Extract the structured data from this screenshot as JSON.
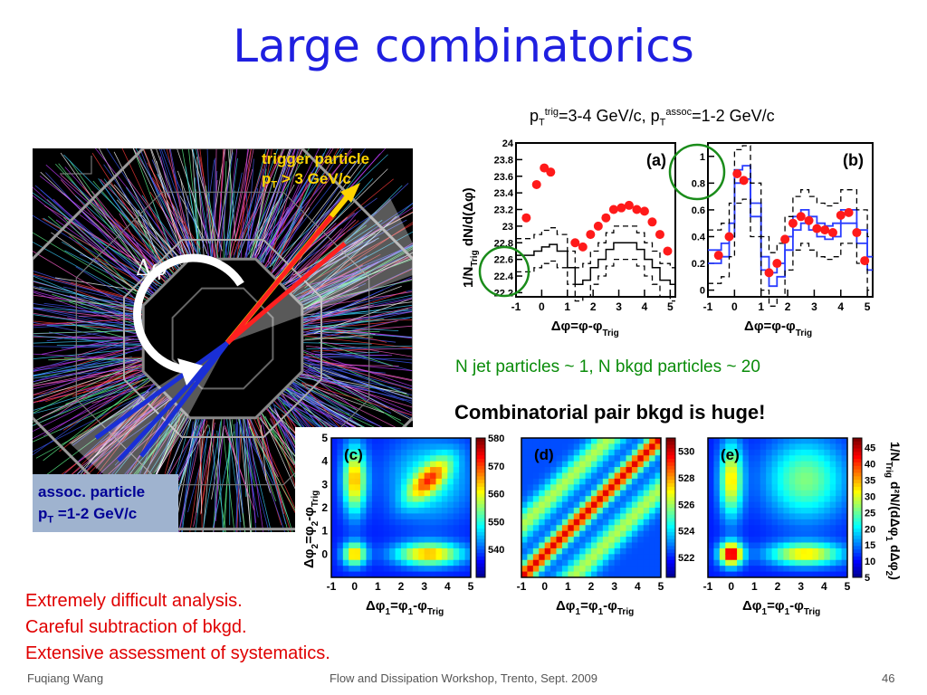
{
  "slide": {
    "title": "Large combinatorics",
    "footer": {
      "author": "Fuqiang Wang",
      "event": "Flow and Dissipation Workshop, Trento, Sept. 2009",
      "page": "46"
    }
  },
  "kinematics": {
    "pt": "p",
    "T": "T",
    "trig_sup": "trig",
    "trig_range": "=3-4 GeV/c, p",
    "assoc_sup": "assoc",
    "assoc_range": "=1-2 GeV/c"
  },
  "event_display": {
    "trigger_line1": "trigger particle",
    "trigger_line2_a": "p",
    "trigger_line2_sub": "T",
    "trigger_line2_b": " > 3 GeV/c",
    "assoc_line1": "assoc. particle",
    "assoc_line2_a": "p",
    "assoc_line2_sub": "T",
    "assoc_line2_b": " =1-2 GeV/c",
    "dphi_label": "Δφ",
    "colors": {
      "trigger": "#ffd400",
      "assoc": "#1a2fd6",
      "turn_arrow": "#ffffff"
    }
  },
  "annotations": {
    "njet": "N jet particles ~ 1,    N bkgd particles ~ 20",
    "combinatorial": "Combinatorial pair bkgd is huge!",
    "notes": [
      "Extremely difficult analysis.",
      "Careful subtraction of bkgd.",
      "Extensive assessment of systematics."
    ]
  },
  "chart_data": [
    {
      "type": "scatter",
      "panel": "(a)",
      "ylabel": "1/N_Trig dN/d(Δφ)",
      "xlabel": "Δφ=φ-φ_Trig",
      "xlim": [
        -1,
        5.2
      ],
      "ylim": [
        22.15,
        24.0
      ],
      "xticks": [
        "-1",
        "0",
        "1",
        "2",
        "3",
        "4",
        "5"
      ],
      "yticks": [
        "22.2",
        "22.4",
        "22.6",
        "22.8",
        "23",
        "23.2",
        "23.4",
        "23.6",
        "23.8",
        "24"
      ],
      "series": [
        {
          "values_x": [
            -0.6,
            -0.2,
            0.1,
            0.35,
            1.3,
            1.6,
            1.9,
            2.2,
            2.5,
            2.8,
            3.1,
            3.4,
            3.7,
            4.0,
            4.3,
            4.6,
            4.9
          ],
          "values_y": [
            23.1,
            23.5,
            23.7,
            23.65,
            22.8,
            22.75,
            22.9,
            23.0,
            23.1,
            23.2,
            23.22,
            23.25,
            23.2,
            23.18,
            23.05,
            22.9,
            22.7
          ],
          "color": "#ff1a1a"
        }
      ],
      "curves": {
        "center": [
          [
            -1,
            22.65
          ],
          [
            -0.5,
            22.65
          ],
          [
            -0.3,
            22.7
          ],
          [
            0,
            22.75
          ],
          [
            0.3,
            22.78
          ],
          [
            0.6,
            22.7
          ],
          [
            1.0,
            22.5
          ],
          [
            1.3,
            22.3
          ],
          [
            1.6,
            22.35
          ],
          [
            1.9,
            22.5
          ],
          [
            2.2,
            22.6
          ],
          [
            2.5,
            22.72
          ],
          [
            2.8,
            22.8
          ],
          [
            3.1,
            22.8
          ],
          [
            3.4,
            22.8
          ],
          [
            3.7,
            22.72
          ],
          [
            4.0,
            22.6
          ],
          [
            4.3,
            22.5
          ],
          [
            4.6,
            22.35
          ],
          [
            5.0,
            22.3
          ],
          [
            5.2,
            22.3
          ]
        ],
        "band_offset": 0.2
      }
    },
    {
      "type": "scatter",
      "panel": "(b)",
      "xlabel": "Δφ=φ-φ_Trig",
      "xlim": [
        -1,
        5.2
      ],
      "ylim": [
        -0.05,
        1.1
      ],
      "xticks": [
        "-1",
        "0",
        "1",
        "2",
        "3",
        "4",
        "5"
      ],
      "yticks": [
        "0",
        "0.2",
        "0.4",
        "0.6",
        "0.8",
        "1"
      ],
      "series": [
        {
          "values_x": [
            -0.6,
            -0.2,
            0.1,
            0.35,
            1.3,
            1.6,
            1.9,
            2.2,
            2.5,
            2.8,
            3.1,
            3.4,
            3.7,
            4.0,
            4.3,
            4.6,
            4.9
          ],
          "values_y": [
            0.26,
            0.4,
            0.87,
            0.82,
            0.13,
            0.2,
            0.38,
            0.5,
            0.55,
            0.52,
            0.46,
            0.45,
            0.43,
            0.56,
            0.58,
            0.43,
            0.22
          ],
          "color": "#ff1a1a"
        }
      ],
      "curves": {
        "blue_center": [
          [
            -1,
            0.25
          ],
          [
            -0.5,
            0.3
          ],
          [
            -0.2,
            0.45
          ],
          [
            0,
            0.85
          ],
          [
            0.3,
            0.88
          ],
          [
            0.6,
            0.6
          ],
          [
            1.0,
            0.2
          ],
          [
            1.3,
            0.08
          ],
          [
            1.6,
            0.15
          ],
          [
            1.9,
            0.35
          ],
          [
            2.2,
            0.5
          ],
          [
            2.5,
            0.55
          ],
          [
            2.8,
            0.5
          ],
          [
            3.1,
            0.45
          ],
          [
            3.4,
            0.43
          ],
          [
            3.7,
            0.45
          ],
          [
            4.0,
            0.55
          ],
          [
            4.3,
            0.55
          ],
          [
            4.6,
            0.4
          ],
          [
            5.0,
            0.2
          ],
          [
            5.2,
            0.2
          ]
        ],
        "blue_offset": 0.05,
        "dash_offset": 0.2
      }
    },
    {
      "type": "heatmap",
      "panel": "(c)",
      "xlabel": "Δφ_1=φ_1-φ_Trig",
      "ylabel": "Δφ_2=φ_2-φ_Trig",
      "xlim": [
        -1,
        5
      ],
      "ylim": [
        -1,
        5
      ],
      "xticks": [
        "-1",
        "0",
        "1",
        "2",
        "3",
        "4",
        "5"
      ],
      "yticks": [
        "0",
        "1",
        "2",
        "3",
        "4",
        "5"
      ],
      "colorbar": {
        "min": 530,
        "max": 580,
        "ticks": [
          "540",
          "550",
          "560",
          "570",
          "580"
        ]
      }
    },
    {
      "type": "heatmap",
      "panel": "(d)",
      "xlabel": "Δφ_1=φ_1-φ_Trig",
      "xlim": [
        -1,
        5
      ],
      "ylim": [
        -1,
        5
      ],
      "xticks": [
        "-1",
        "0",
        "1",
        "2",
        "3",
        "4",
        "5"
      ],
      "colorbar": {
        "min": 520.5,
        "max": 531,
        "ticks": [
          "522",
          "524",
          "526",
          "528",
          "530"
        ]
      }
    },
    {
      "type": "heatmap",
      "panel": "(e)",
      "xlabel": "Δφ_1=φ_1-φ_Trig",
      "ylabel_right": "1/N_Trig d²N/(dΔφ_1 dΔφ_2)",
      "xlim": [
        -1,
        5
      ],
      "ylim": [
        -1,
        5
      ],
      "xticks": [
        "-1",
        "0",
        "1",
        "2",
        "3",
        "4",
        "5"
      ],
      "colorbar": {
        "min": 5,
        "max": 48,
        "ticks": [
          "5",
          "10",
          "15",
          "20",
          "25",
          "30",
          "35",
          "40",
          "45"
        ]
      }
    }
  ]
}
